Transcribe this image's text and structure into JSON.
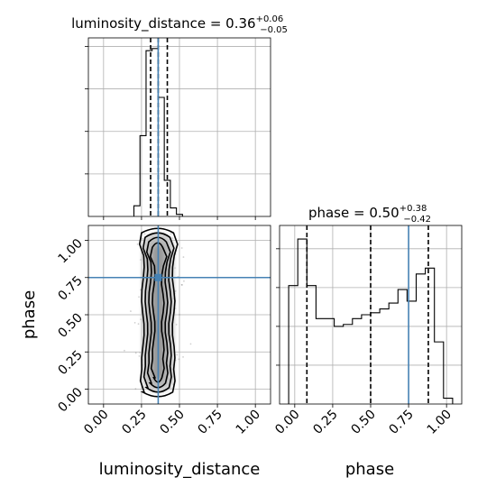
{
  "chart_data": [
    {
      "type": "histogram",
      "panel": "luminosity_distance marginal",
      "title": {
        "prefix": "luminosity_distance = 0.36",
        "sup": "+0.06",
        "sub": "−0.05"
      },
      "xlim": [
        -0.1,
        1.1
      ],
      "bin_edges": [
        0.2,
        0.24,
        0.28,
        0.32,
        0.36,
        0.4,
        0.44,
        0.48,
        0.52
      ],
      "counts": [
        0.05,
        0.38,
        0.78,
        0.79,
        0.56,
        0.17,
        0.04,
        0.01
      ],
      "quantiles": [
        0.31,
        0.36,
        0.42
      ],
      "truth": 0.36,
      "xticks_shown": false,
      "yticks_shown": false
    },
    {
      "type": "contour",
      "panel": "luminosity_distance vs phase",
      "xlabel": "luminosity_distance",
      "ylabel": "phase",
      "xlim": [
        -0.1,
        1.1
      ],
      "ylim": [
        -0.1,
        1.1
      ],
      "xtick_labels": [
        "0.00",
        "0.25",
        "0.50",
        "0.75",
        "1.00"
      ],
      "ytick_labels": [
        "0.00",
        "0.25",
        "0.50",
        "0.75",
        "1.00"
      ],
      "xticks": [
        0,
        0.25,
        0.5,
        0.75,
        1.0
      ],
      "yticks": [
        0,
        0.25,
        0.5,
        0.75,
        1.0
      ],
      "truth": {
        "x": 0.36,
        "y": 0.75
      },
      "contour_center_x": 0.36,
      "contour_y_range": [
        0.0,
        1.05
      ]
    },
    {
      "type": "histogram",
      "panel": "phase marginal",
      "title": {
        "prefix": "phase = 0.50",
        "sup": "+0.38",
        "sub": "−0.42"
      },
      "xlabel": "phase",
      "xlim": [
        -0.1,
        1.1
      ],
      "xtick_labels": [
        "0.00",
        "0.25",
        "0.50",
        "0.75",
        "1.00"
      ],
      "xticks": [
        0,
        0.25,
        0.5,
        0.75,
        1.0
      ],
      "bin_edges": [
        -0.04,
        0.02,
        0.08,
        0.14,
        0.2,
        0.26,
        0.32,
        0.38,
        0.44,
        0.5,
        0.56,
        0.62,
        0.68,
        0.74,
        0.8,
        0.86,
        0.92,
        0.98,
        1.04
      ],
      "counts": [
        0.61,
        0.85,
        0.61,
        0.44,
        0.44,
        0.4,
        0.41,
        0.44,
        0.46,
        0.47,
        0.49,
        0.52,
        0.59,
        0.53,
        0.67,
        0.7,
        0.32,
        0.03
      ],
      "quantiles": [
        0.08,
        0.5,
        0.88
      ],
      "truth": 0.75
    }
  ]
}
